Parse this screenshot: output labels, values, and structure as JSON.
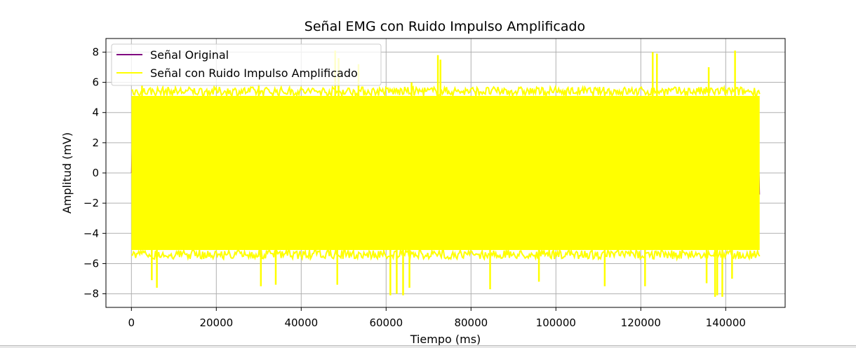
{
  "chart_data": {
    "type": "line",
    "title": "Señal EMG con Ruido Impulso Amplificado",
    "xlabel": "Tiempo (ms)",
    "ylabel": "Amplitud (mV)",
    "xlim": [
      -6000,
      154000
    ],
    "ylim": [
      -8.9,
      8.9
    ],
    "x_ticks": [
      0,
      20000,
      40000,
      60000,
      80000,
      100000,
      120000,
      140000
    ],
    "x_tick_labels": [
      "0",
      "20000",
      "40000",
      "60000",
      "80000",
      "100000",
      "120000",
      "140000"
    ],
    "y_ticks": [
      -8,
      -6,
      -4,
      -2,
      0,
      2,
      4,
      6,
      8
    ],
    "y_tick_labels": [
      "−8",
      "−6",
      "−4",
      "−2",
      "0",
      "2",
      "4",
      "6",
      "8"
    ],
    "grid": true,
    "legend_position": "upper-left",
    "series": [
      {
        "name": "Señal Original",
        "color": "#800080",
        "x_range": [
          0,
          148000
        ],
        "note_values": "dense signal fully hidden beneath the noisy series"
      },
      {
        "name": "Señal con Ruido Impulso Amplificado",
        "color": "#ffff00",
        "x_range": [
          0,
          148000
        ],
        "envelope_upper": 5.1,
        "envelope_lower": -5.1,
        "spikes": [
          {
            "x": 48000,
            "y": 8.1
          },
          {
            "x": 48800,
            "y": 7.6
          },
          {
            "x": 53500,
            "y": 7.2
          },
          {
            "x": 72200,
            "y": 7.8
          },
          {
            "x": 72800,
            "y": 7.5
          },
          {
            "x": 122800,
            "y": 8.0
          },
          {
            "x": 123800,
            "y": 7.9
          },
          {
            "x": 136000,
            "y": 7.0
          },
          {
            "x": 142200,
            "y": 8.1
          },
          {
            "x": 2500,
            "y": 5.8
          },
          {
            "x": 30000,
            "y": 5.9
          },
          {
            "x": 66000,
            "y": 6.0
          },
          {
            "x": 4800,
            "y": -7.1
          },
          {
            "x": 30500,
            "y": -7.5
          },
          {
            "x": 34000,
            "y": -7.4
          },
          {
            "x": 48500,
            "y": -7.4
          },
          {
            "x": 61000,
            "y": -8.1
          },
          {
            "x": 62500,
            "y": -8.0
          },
          {
            "x": 64000,
            "y": -8.1
          },
          {
            "x": 65500,
            "y": -7.6
          },
          {
            "x": 84500,
            "y": -7.7
          },
          {
            "x": 96000,
            "y": -7.2
          },
          {
            "x": 111500,
            "y": -7.5
          },
          {
            "x": 121000,
            "y": -7.5
          },
          {
            "x": 135500,
            "y": -7.3
          },
          {
            "x": 137500,
            "y": -8.2
          },
          {
            "x": 138000,
            "y": -8.1
          },
          {
            "x": 139200,
            "y": -8.2
          },
          {
            "x": 6000,
            "y": -7.6
          },
          {
            "x": 141500,
            "y": -7.0
          }
        ]
      }
    ]
  }
}
